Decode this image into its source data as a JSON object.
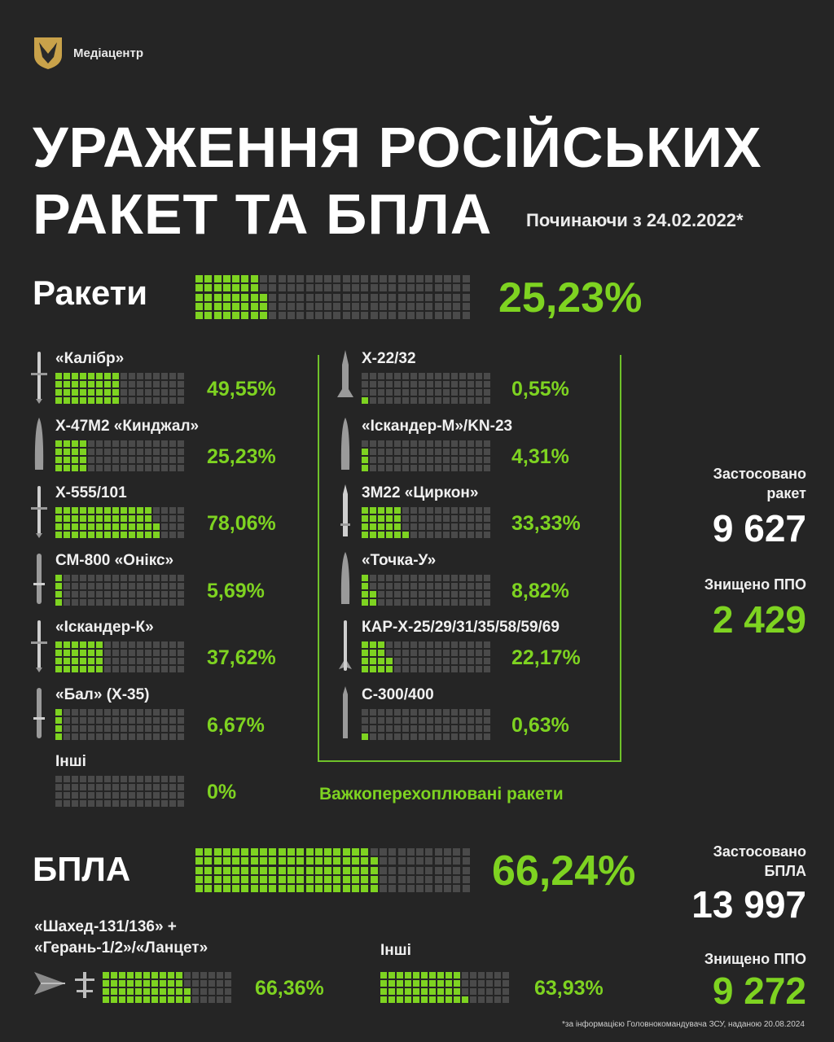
{
  "header": {
    "org_name": "Медіацентр",
    "title_line1": "УРАЖЕННЯ РОСІЙСЬКИХ",
    "title_line2": "РАКЕТ ТА БПЛА",
    "subtitle": "Починаючи з 24.02.2022*"
  },
  "missiles": {
    "label": "Ракети",
    "overall_pct_text": "25,23%",
    "overall_value": 25.23,
    "left_items": [
      {
        "name": "«Калібр»",
        "pct_text": "49,55%",
        "value": 49.55,
        "icon": "cruise-missile-icon"
      },
      {
        "name": "Х-47М2 «Кинджал»",
        "pct_text": "25,23%",
        "value": 25.23,
        "icon": "ballistic-missile-icon"
      },
      {
        "name": "Х-555/101",
        "pct_text": "78,06%",
        "value": 78.06,
        "icon": "cruise-missile-icon"
      },
      {
        "name": "СМ-800 «Онікс»",
        "pct_text": "5,69%",
        "value": 5.69,
        "icon": "antiship-missile-icon"
      },
      {
        "name": "«Іскандер-К»",
        "pct_text": "37,62%",
        "value": 37.62,
        "icon": "cruise-missile-icon"
      },
      {
        "name": "«Бал» (Х-35)",
        "pct_text": "6,67%",
        "value": 6.67,
        "icon": "antiship-missile-icon"
      },
      {
        "name": "Інші",
        "pct_text": "0%",
        "value": 0,
        "icon": ""
      }
    ],
    "right_items": [
      {
        "name": "Х-22/32",
        "pct_text": "0,55%",
        "value": 0.55,
        "icon": "heavy-missile-icon"
      },
      {
        "name": "«Іскандер-М»/KN-23",
        "pct_text": "4,31%",
        "value": 4.31,
        "icon": "ballistic-missile-icon"
      },
      {
        "name": "3М22 «Циркон»",
        "pct_text": "33,33%",
        "value": 33.33,
        "icon": "hypersonic-missile-icon"
      },
      {
        "name": "«Точка-У»",
        "pct_text": "8,82%",
        "value": 8.82,
        "icon": "ballistic-missile-icon"
      },
      {
        "name": "КАР-Х-25/29/31/35/58/59/69",
        "pct_text": "22,17%",
        "value": 22.17,
        "icon": "air-missile-icon"
      },
      {
        "name": "С-300/400",
        "pct_text": "0,63%",
        "value": 0.63,
        "icon": "sam-missile-icon"
      }
    ],
    "group_caption": "Важкоперехоплювані ракети",
    "used_label": "Застосовано ракет",
    "used_label_line1": "Застосовано",
    "used_label_line2": "ракет",
    "used_value": "9 627",
    "destroyed_label": "Знищено ППО",
    "destroyed_value": "2 429"
  },
  "drones": {
    "label": "БПЛА",
    "overall_pct_text": "66,24%",
    "overall_value": 66.24,
    "shahed_label_line1": "«Шахед-131/136» +",
    "shahed_label_line2": "«Герань-1/2»/«Ланцет»",
    "shahed_pct_text": "66,36%",
    "shahed_value": 66.36,
    "other_label": "Інші",
    "other_pct_text": "63,93%",
    "other_value": 63.93,
    "used_label_line1": "Застосовано",
    "used_label_line2": "БПЛА",
    "used_value": "13 997",
    "destroyed_label": "Знищено ППО",
    "destroyed_value": "9 272"
  },
  "footnote": "*за інформацією Головнокомандувача ЗСУ, наданою 20.08.2024",
  "colors": {
    "background": "#252525",
    "accent_green": "#7ed321",
    "cell_off": "#4a4a4a",
    "frame_green": "#6fc22a"
  },
  "chart_data": {
    "type": "bar",
    "title": "УРАЖЕННЯ РОСІЙСЬКИХ РАКЕТ ТА БПЛА",
    "subtitle": "Починаючи з 24.02.2022*",
    "unit": "%",
    "categories": [
      "Ракети",
      "«Калібр»",
      "Х-47М2 «Кинджал»",
      "Х-555/101",
      "СМ-800 «Онікс»",
      "«Іскандер-К»",
      "«Бал» (Х-35)",
      "Інші",
      "Х-22/32",
      "«Іскандер-М»/KN-23",
      "3М22 «Циркон»",
      "«Точка-У»",
      "КАР-Х-25/29/31/35/58/59/69",
      "С-300/400",
      "БПЛА",
      "«Шахед-131/136» + «Герань-1/2»/«Ланцет»",
      "Інші"
    ],
    "values": [
      25.23,
      49.55,
      25.23,
      78.06,
      5.69,
      37.62,
      6.67,
      0,
      0.55,
      4.31,
      33.33,
      8.82,
      22.17,
      0.63,
      66.24,
      66.36,
      63.93
    ],
    "ylim": [
      0,
      100
    ]
  }
}
